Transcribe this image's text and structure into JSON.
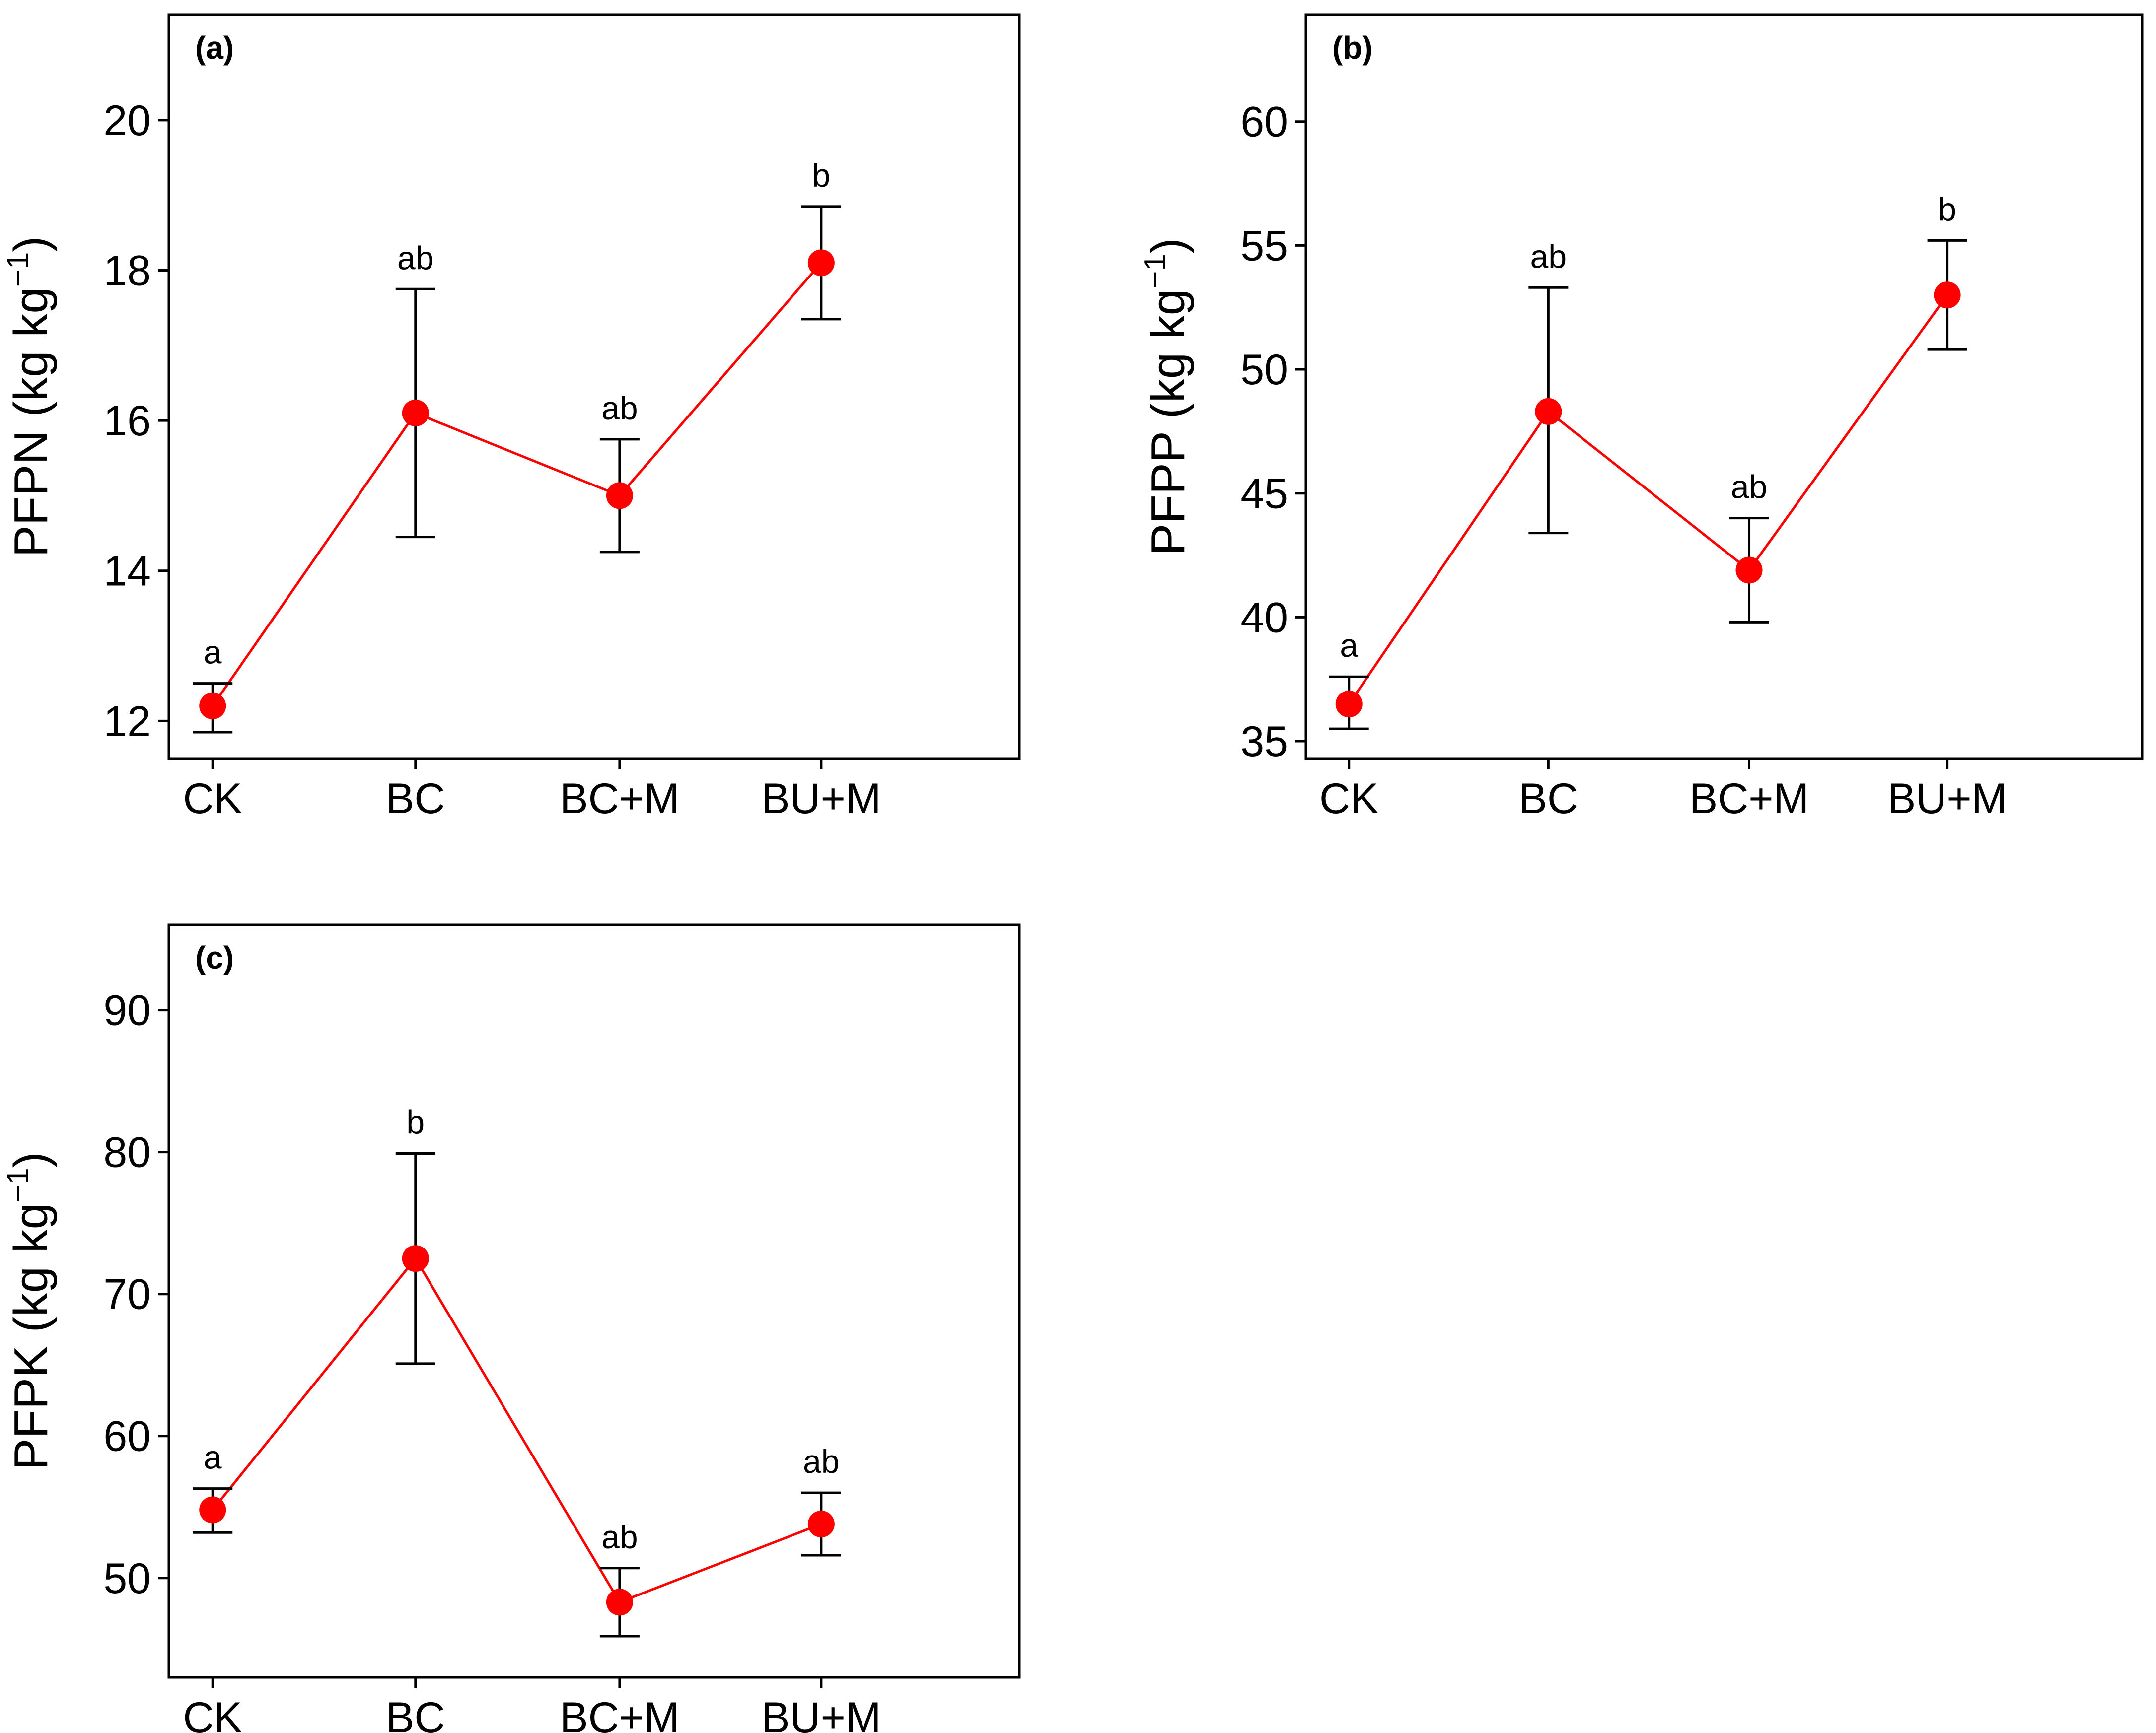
{
  "chart_data": [
    {
      "panel_label": "(a)",
      "type": "line",
      "categories": [
        "CK",
        "BC",
        "BC+M",
        "BU+M"
      ],
      "values": [
        12.2,
        16.1,
        15.0,
        18.1
      ],
      "error_low": [
        11.85,
        14.45,
        14.25,
        17.35
      ],
      "error_high": [
        12.5,
        17.75,
        15.75,
        18.85
      ],
      "significance": [
        "a",
        "ab",
        "ab",
        "b"
      ],
      "ylabel_main": "PFPN",
      "ylabel_unit": "(kg kg",
      "ylabel_sup": "−1",
      "ylabel_close": ")",
      "yticks": [
        12,
        14,
        16,
        18,
        20
      ],
      "ylim": [
        11.5,
        21.4
      ],
      "line_color": "#ff0000",
      "marker_color": "#ff0000"
    },
    {
      "panel_label": "(b)",
      "type": "line",
      "categories": [
        "CK",
        "BC",
        "BC+M",
        "BU+M"
      ],
      "values": [
        36.5,
        48.3,
        41.9,
        53.0
      ],
      "error_low": [
        35.5,
        43.4,
        39.8,
        50.8
      ],
      "error_high": [
        37.6,
        53.3,
        44.0,
        55.2
      ],
      "significance": [
        "a",
        "ab",
        "ab",
        "b"
      ],
      "ylabel_main": "PFPP",
      "ylabel_unit": "(kg kg",
      "ylabel_sup": "−1",
      "ylabel_close": ")",
      "yticks": [
        35,
        40,
        45,
        50,
        55,
        60
      ],
      "ylim": [
        34.3,
        64.3
      ],
      "line_color": "#ff0000",
      "marker_color": "#ff0000"
    },
    {
      "panel_label": "(c)",
      "type": "line",
      "categories": [
        "CK",
        "BC",
        "BC+M",
        "BU+M"
      ],
      "values": [
        54.8,
        72.5,
        48.3,
        53.8
      ],
      "error_low": [
        53.2,
        65.1,
        45.9,
        51.6
      ],
      "error_high": [
        56.3,
        79.9,
        50.7,
        56.0
      ],
      "significance": [
        "a",
        "b",
        "ab",
        "ab"
      ],
      "ylabel_main": "PFPK",
      "ylabel_unit": "(kg kg",
      "ylabel_sup": "−1",
      "ylabel_close": ")",
      "yticks": [
        50,
        60,
        70,
        80,
        90
      ],
      "ylim": [
        43.0,
        96.0
      ],
      "line_color": "#ff0000",
      "marker_color": "#ff0000"
    }
  ]
}
